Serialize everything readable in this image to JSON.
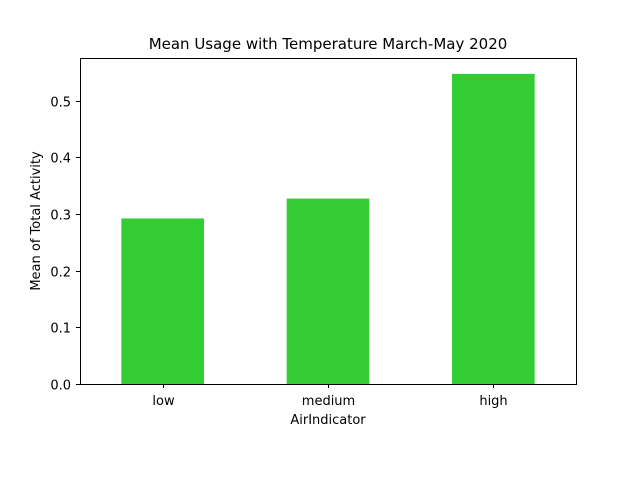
{
  "chart_data": {
    "type": "bar",
    "title": "Mean Usage with Temperature March-May 2020",
    "xlabel": "AirIndicator",
    "ylabel": "Mean of Total Activity",
    "categories": [
      "low",
      "medium",
      "high"
    ],
    "values": [
      0.292,
      0.327,
      0.547
    ],
    "ylim": [
      0,
      0.575
    ],
    "yticks": [
      0.0,
      0.1,
      0.2,
      0.3,
      0.4,
      0.5
    ],
    "ytick_labels": [
      "0.0",
      "0.1",
      "0.2",
      "0.3",
      "0.4",
      "0.5"
    ],
    "bar_color": "#33cc33",
    "grid": false,
    "legend": "none"
  }
}
